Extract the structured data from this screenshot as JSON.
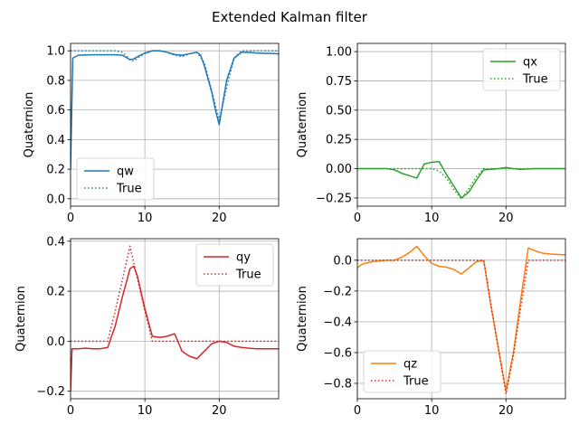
{
  "figure": {
    "title": "Extended Kalman filter"
  },
  "chart_data": [
    {
      "type": "line",
      "ylabel": "Quaternion",
      "xlim": [
        0,
        28
      ],
      "ylim": [
        -0.05,
        1.05
      ],
      "xticks": [
        0,
        10,
        20
      ],
      "yticks": [
        0.0,
        0.2,
        0.4,
        0.6,
        0.8,
        1.0
      ],
      "ytick_labels": [
        "0.0",
        "0.2",
        "0.4",
        "0.6",
        "0.8",
        "1.0"
      ],
      "grid": true,
      "legend_loc": "lower-left",
      "series": [
        {
          "name": "qw",
          "style": "solid",
          "color": "#1f77b4",
          "x": [
            0,
            0.3,
            1,
            2,
            3,
            4,
            5,
            6,
            7,
            8,
            8.5,
            9,
            10,
            11,
            12,
            13,
            14,
            15,
            16,
            17,
            17.5,
            18,
            19,
            19.5,
            20,
            20.5,
            21,
            22,
            23,
            24,
            25,
            26,
            27,
            28
          ],
          "y": [
            0.2,
            0.95,
            0.97,
            0.972,
            0.973,
            0.973,
            0.973,
            0.973,
            0.97,
            0.94,
            0.945,
            0.96,
            0.985,
            1.0,
            1.0,
            0.99,
            0.975,
            0.97,
            0.98,
            0.99,
            0.97,
            0.9,
            0.72,
            0.6,
            0.5,
            0.65,
            0.8,
            0.95,
            0.99,
            0.99,
            0.985,
            0.983,
            0.982,
            0.98
          ]
        },
        {
          "name": "True",
          "style": "dotted",
          "color": "#1f77b4",
          "x": [
            0,
            1,
            2,
            3,
            4,
            5,
            6,
            7,
            8,
            8.5,
            9,
            10,
            11,
            12,
            13,
            14,
            15,
            16,
            17,
            18,
            19,
            20,
            21,
            22,
            23,
            24,
            25,
            26,
            27,
            28
          ],
          "y": [
            1.0,
            1.0,
            1.0,
            1.0,
            1.0,
            1.0,
            1.0,
            0.99,
            0.94,
            0.93,
            0.95,
            0.98,
            1.0,
            1.0,
            0.99,
            0.97,
            0.96,
            0.98,
            0.99,
            0.92,
            0.73,
            0.53,
            0.75,
            0.95,
            1.0,
            1.0,
            1.0,
            1.0,
            1.0,
            1.0
          ]
        }
      ]
    },
    {
      "type": "line",
      "ylabel": "Quaternion",
      "xlim": [
        0,
        28
      ],
      "ylim": [
        -0.32,
        1.07
      ],
      "xticks": [
        0,
        10,
        20
      ],
      "yticks": [
        -0.25,
        0.0,
        0.25,
        0.5,
        0.75,
        1.0
      ],
      "ytick_labels": [
        "−0.25",
        "0.00",
        "0.25",
        "0.50",
        "0.75",
        "1.00"
      ],
      "grid": true,
      "legend_loc": "upper-right",
      "series": [
        {
          "name": "qx",
          "style": "solid",
          "color": "#2ca02c",
          "x": [
            0,
            2,
            4,
            5,
            6,
            7,
            8,
            9,
            10,
            11,
            12,
            13,
            14,
            15,
            16,
            17,
            18,
            19,
            20,
            21,
            22,
            24,
            26,
            28
          ],
          "y": [
            0.0,
            0.0,
            0.0,
            -0.01,
            -0.04,
            -0.06,
            -0.08,
            0.04,
            0.055,
            0.06,
            -0.05,
            -0.15,
            -0.25,
            -0.2,
            -0.1,
            -0.01,
            -0.005,
            0.0,
            0.01,
            0.0,
            -0.005,
            0.0,
            0.0,
            0.0
          ]
        },
        {
          "name": "True",
          "style": "dotted",
          "color": "#2ca02c",
          "x": [
            0,
            2,
            4,
            6,
            8,
            10,
            11,
            12,
            13,
            14,
            15,
            16,
            17,
            18,
            20,
            22,
            24,
            26,
            28
          ],
          "y": [
            0.0,
            0.0,
            0.0,
            0.0,
            0.0,
            0.0,
            -0.02,
            -0.08,
            -0.18,
            -0.26,
            -0.17,
            -0.07,
            0.0,
            0.0,
            0.0,
            0.0,
            0.0,
            0.0,
            0.0
          ]
        }
      ]
    },
    {
      "type": "line",
      "ylabel": "Quaternion",
      "xlim": [
        0,
        28
      ],
      "ylim": [
        -0.23,
        0.41
      ],
      "xticks": [
        0,
        10,
        20
      ],
      "yticks": [
        -0.2,
        0.0,
        0.2,
        0.4
      ],
      "ytick_labels": [
        "−0.2",
        "0.0",
        "0.2",
        "0.4"
      ],
      "grid": true,
      "legend_loc": "upper-right",
      "series": [
        {
          "name": "qy",
          "style": "solid",
          "color": "#d62728",
          "x": [
            0,
            0.2,
            1,
            2,
            3,
            4,
            5,
            6,
            7,
            8,
            8.5,
            9,
            10,
            11,
            12,
            13,
            14,
            15,
            16,
            17,
            18,
            19,
            20,
            21,
            22,
            23,
            24,
            25,
            26,
            27,
            28
          ],
          "y": [
            -0.2,
            -0.03,
            -0.03,
            -0.028,
            -0.03,
            -0.03,
            -0.025,
            0.06,
            0.18,
            0.29,
            0.3,
            0.26,
            0.13,
            0.02,
            0.015,
            0.02,
            0.03,
            -0.04,
            -0.06,
            -0.07,
            -0.04,
            -0.01,
            0.0,
            -0.005,
            -0.02,
            -0.025,
            -0.028,
            -0.03,
            -0.03,
            -0.03,
            -0.03
          ]
        },
        {
          "name": "True",
          "style": "dotted",
          "color": "#d62728",
          "x": [
            0,
            1,
            2,
            3,
            4,
            5,
            6,
            7,
            8,
            9,
            10,
            11,
            12,
            14,
            16,
            18,
            20,
            22,
            24,
            26,
            28
          ],
          "y": [
            0.0,
            0.0,
            0.0,
            0.0,
            0.0,
            0.0,
            0.12,
            0.25,
            0.38,
            0.25,
            0.12,
            0.0,
            0.0,
            0.0,
            0.0,
            0.0,
            0.0,
            0.0,
            0.0,
            0.0,
            0.0
          ]
        }
      ]
    },
    {
      "type": "line",
      "ylabel": "Quaternion",
      "xlim": [
        0,
        28
      ],
      "ylim": [
        -0.9,
        0.14
      ],
      "xticks": [
        0,
        10,
        20
      ],
      "yticks": [
        -0.8,
        -0.6,
        -0.4,
        -0.2,
        0.0
      ],
      "ytick_labels": [
        "−0.8",
        "−0.6",
        "−0.4",
        "−0.2",
        "0.0"
      ],
      "grid": true,
      "legend_loc": "lower-left",
      "series": [
        {
          "name": "qz",
          "style": "solid",
          "color": "#ff7f0e",
          "x": [
            0,
            0.5,
            1,
            2,
            3,
            4,
            5,
            6,
            7,
            8,
            9,
            10,
            11,
            12,
            13,
            14,
            15,
            16,
            17,
            18,
            19,
            20,
            21,
            22,
            23,
            24,
            25,
            26,
            28
          ],
          "y": [
            -0.05,
            -0.03,
            -0.02,
            -0.01,
            -0.005,
            0.0,
            0.0,
            0.02,
            0.05,
            0.09,
            0.03,
            -0.02,
            -0.04,
            -0.045,
            -0.06,
            -0.09,
            -0.05,
            -0.01,
            0.0,
            -0.3,
            -0.58,
            -0.85,
            -0.6,
            -0.25,
            0.08,
            0.06,
            0.045,
            0.04,
            0.035
          ]
        },
        {
          "name": "True",
          "style": "dotted",
          "color": "#d62728",
          "x": [
            0,
            2,
            4,
            6,
            8,
            10,
            12,
            14,
            16,
            17,
            18,
            19,
            20,
            21,
            22,
            23,
            24,
            26,
            28
          ],
          "y": [
            0.0,
            0.0,
            0.0,
            0.0,
            0.0,
            0.0,
            0.0,
            0.0,
            0.0,
            0.0,
            -0.3,
            -0.58,
            -0.87,
            -0.62,
            -0.3,
            0.0,
            0.0,
            0.0,
            0.0
          ]
        }
      ]
    }
  ]
}
